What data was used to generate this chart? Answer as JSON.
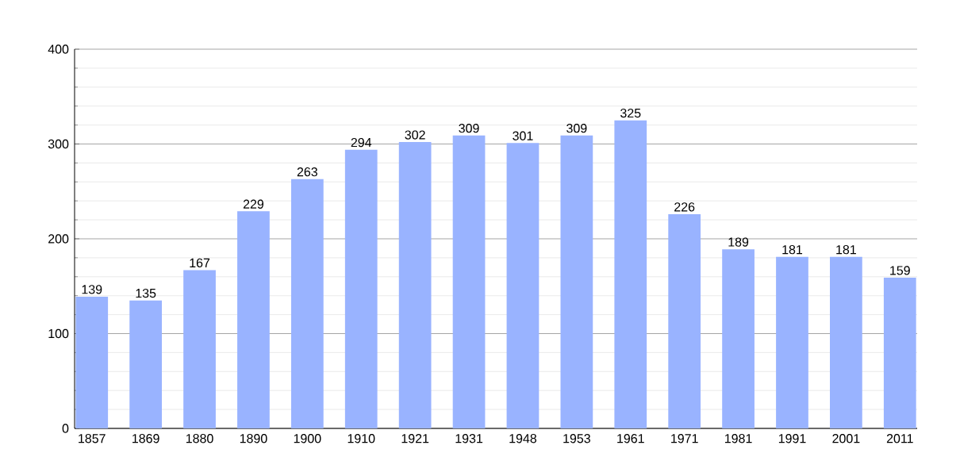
{
  "chart_data": {
    "type": "bar",
    "categories": [
      "1857",
      "1869",
      "1880",
      "1890",
      "1900",
      "1910",
      "1921",
      "1931",
      "1948",
      "1953",
      "1961",
      "1971",
      "1981",
      "1991",
      "2001",
      "2011"
    ],
    "values": [
      139,
      135,
      167,
      229,
      263,
      294,
      302,
      309,
      301,
      309,
      325,
      226,
      189,
      181,
      181,
      159
    ],
    "color": "#99b3ff",
    "data_labels": true,
    "grid": "y",
    "ylim": [
      0,
      400
    ],
    "yticks": [
      0,
      {
        "value": 20,
        "label": null
      },
      {
        "value": 40,
        "label": null
      },
      {
        "value": 60,
        "label": null
      },
      {
        "value": 80,
        "label": null
      },
      100,
      {
        "value": 120,
        "label": null
      },
      {
        "value": 140,
        "label": null
      },
      {
        "value": 160,
        "label": null
      },
      {
        "value": 180,
        "label": null
      },
      200,
      {
        "value": 220,
        "label": null
      },
      {
        "value": 240,
        "label": null
      },
      {
        "value": 260,
        "label": null
      },
      {
        "value": 280,
        "label": null
      },
      300,
      {
        "value": 320,
        "label": null
      },
      {
        "value": 340,
        "label": null
      },
      {
        "value": 360,
        "label": null
      },
      {
        "value": 380,
        "label": null
      },
      400
    ]
  }
}
